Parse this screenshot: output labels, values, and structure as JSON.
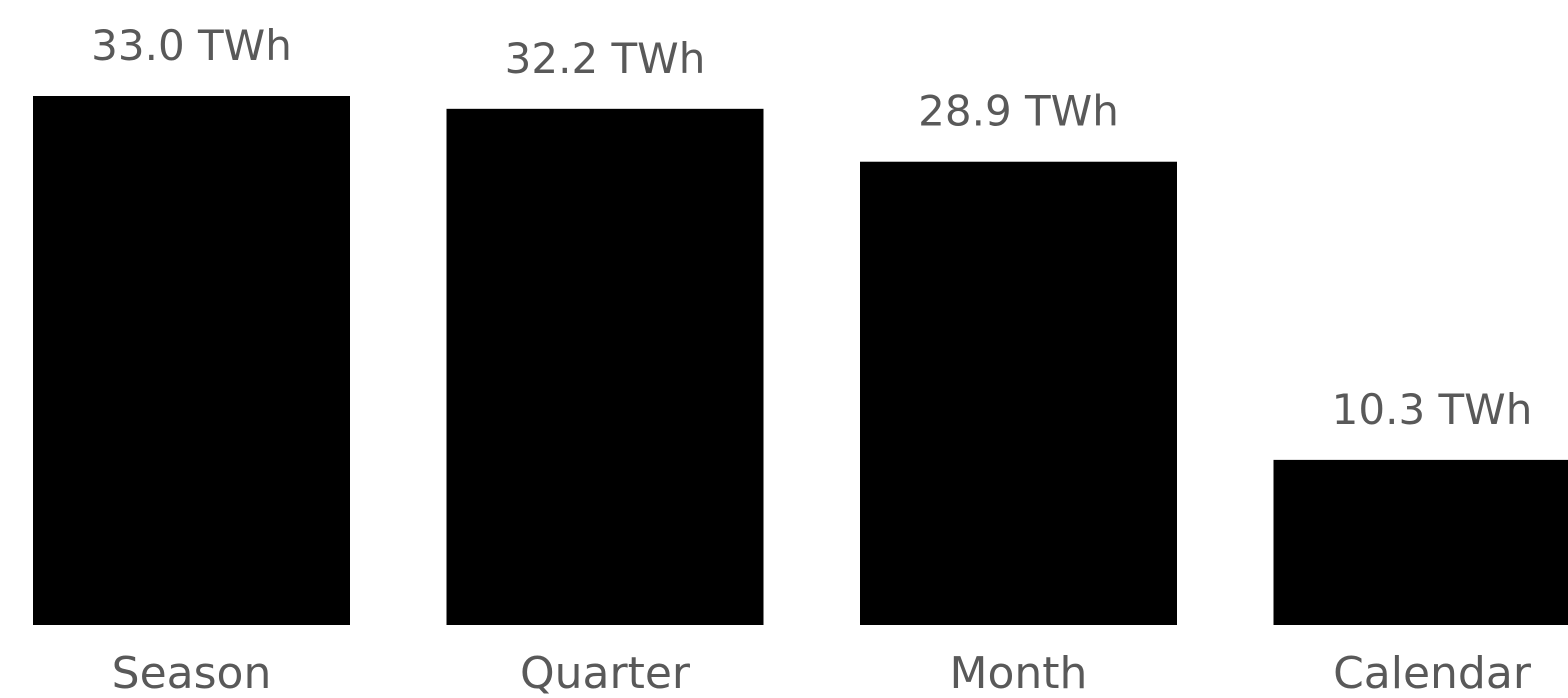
{
  "chart_data": {
    "type": "bar",
    "categories": [
      "Season",
      "Quarter",
      "Month",
      "Calendar"
    ],
    "values": [
      33.0,
      32.2,
      28.9,
      10.3
    ],
    "unit": "TWh",
    "data_labels": [
      "33.0 TWh",
      "32.2 TWh",
      "28.9 TWh",
      "10.3 TWh"
    ],
    "bar_color": "#000000",
    "label_color": "#595959",
    "grid": false,
    "legend": "none",
    "ylim": [
      0,
      33.0
    ]
  }
}
